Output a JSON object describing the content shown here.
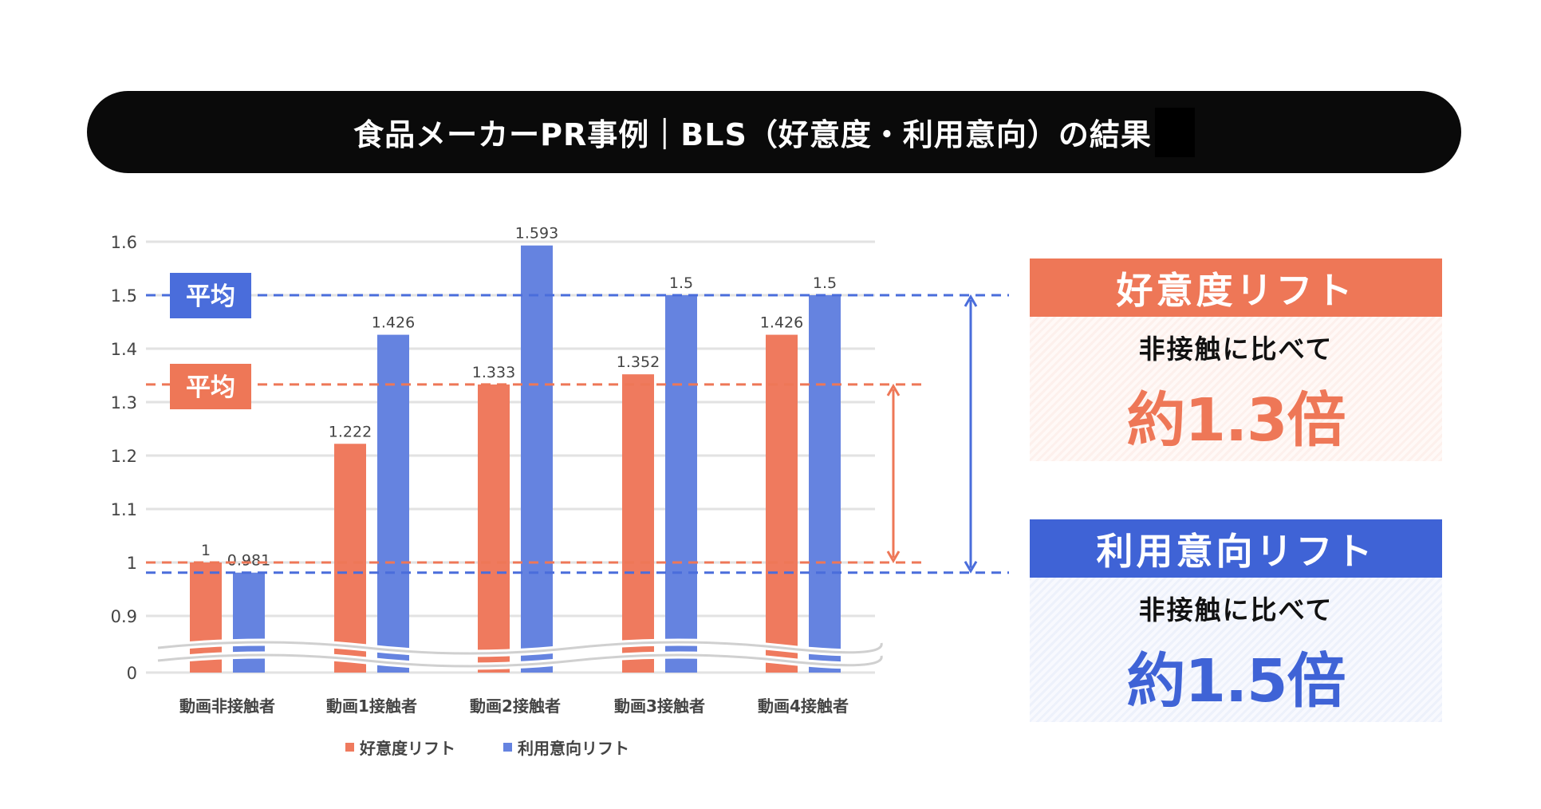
{
  "title": "食品メーカーPR事例｜BLS（好意度・利用意向）の結果",
  "colors": {
    "liking": "#EE7757",
    "intent": "#4A6DDB",
    "liking_bar": "#EF7A5E",
    "intent_bar": "#6583E0"
  },
  "chart_data": {
    "type": "bar",
    "categories": [
      "動画非接触者",
      "動画1接触者",
      "動画2接触者",
      "動画3接触者",
      "動画4接触者"
    ],
    "series": [
      {
        "name": "好意度リフト",
        "values": [
          1,
          1.222,
          1.333,
          1.352,
          1.426
        ],
        "labels": [
          "1",
          "1.222",
          "1.333",
          "1.352",
          "1.426"
        ]
      },
      {
        "name": "利用意向リフト",
        "values": [
          0.981,
          1.426,
          1.593,
          1.5,
          1.5
        ],
        "labels": [
          "0.981",
          "1.426",
          "1.593",
          "1.5",
          "1.5"
        ]
      }
    ],
    "y_ticks": [
      "1.6",
      "1.5",
      "1.4",
      "1.3",
      "1.2",
      "1.1",
      "1",
      "0.9",
      "0"
    ],
    "y_axis_break": [
      0,
      0.9
    ],
    "ylim": [
      0,
      1.6
    ],
    "grid": true,
    "legend": "bottom",
    "average_lines": [
      {
        "label": "平均",
        "series": "利用意向リフト",
        "value": 1.5,
        "baseline": 0.981
      },
      {
        "label": "平均",
        "series": "好意度リフト",
        "value": 1.333,
        "baseline": 1.0
      }
    ]
  },
  "panels": [
    {
      "title": "好意度リフト",
      "subtitle": "非接触に比べて",
      "big": "約1.3倍"
    },
    {
      "title": "利用意向リフト",
      "subtitle": "非接触に比べて",
      "big": "約1.5倍"
    }
  ]
}
